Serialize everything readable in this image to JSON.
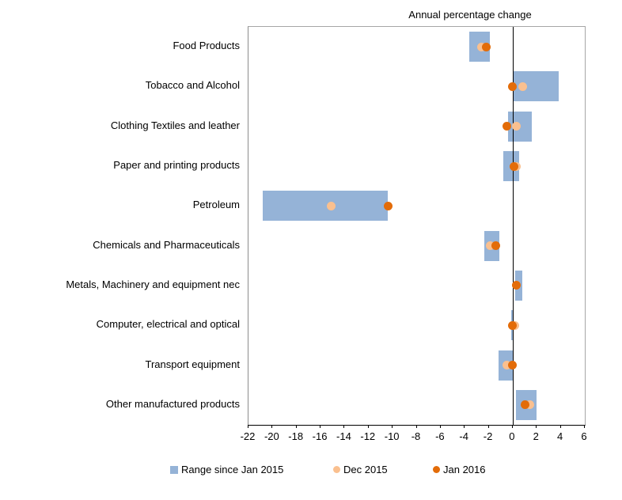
{
  "chart_data": {
    "type": "bar",
    "subtype": "horizontal-range-with-dots",
    "title": "Annual percentage change",
    "categories": [
      "Food Products",
      "Tobacco and Alcohol",
      "Clothing Textiles and leather",
      "Paper and printing products",
      "Petroleum",
      "Chemicals and Pharmaceuticals",
      "Metals, Machinery and equipment nec",
      "Computer, electrical and optical",
      "Transport equipment",
      "Other manufactured products"
    ],
    "series": [
      {
        "name": "Range since Jan 2015",
        "marker": "square",
        "color": "#95b3d7",
        "low": [
          -3.6,
          0.1,
          -0.4,
          -0.8,
          -20.8,
          -2.4,
          0.2,
          -0.1,
          -1.2,
          0.3
        ],
        "high": [
          -1.9,
          3.8,
          1.6,
          0.5,
          -10.4,
          -1.1,
          0.8,
          0.1,
          0.1,
          2.0
        ]
      },
      {
        "name": "Dec 2015",
        "marker": "dot",
        "color": "#fac08f",
        "values": [
          -2.6,
          0.8,
          0.3,
          0.3,
          -15.1,
          -1.9,
          0.3,
          0.2,
          -0.5,
          1.4
        ]
      },
      {
        "name": "Jan 2016",
        "marker": "dot",
        "color": "#e36c09",
        "values": [
          -2.2,
          0.0,
          -0.5,
          0.1,
          -10.4,
          -1.4,
          0.3,
          0.0,
          0.0,
          1.0
        ]
      }
    ],
    "xlim": [
      -22,
      6
    ],
    "x_ticks": [
      -22,
      -20,
      -18,
      -16,
      -14,
      -12,
      -10,
      -8,
      -6,
      -4,
      -2,
      0,
      2,
      4,
      6
    ],
    "grid": false,
    "zero_line": true,
    "legend_position": "bottom",
    "axis_color": "#000000",
    "border_color": "#a6a6a6"
  }
}
